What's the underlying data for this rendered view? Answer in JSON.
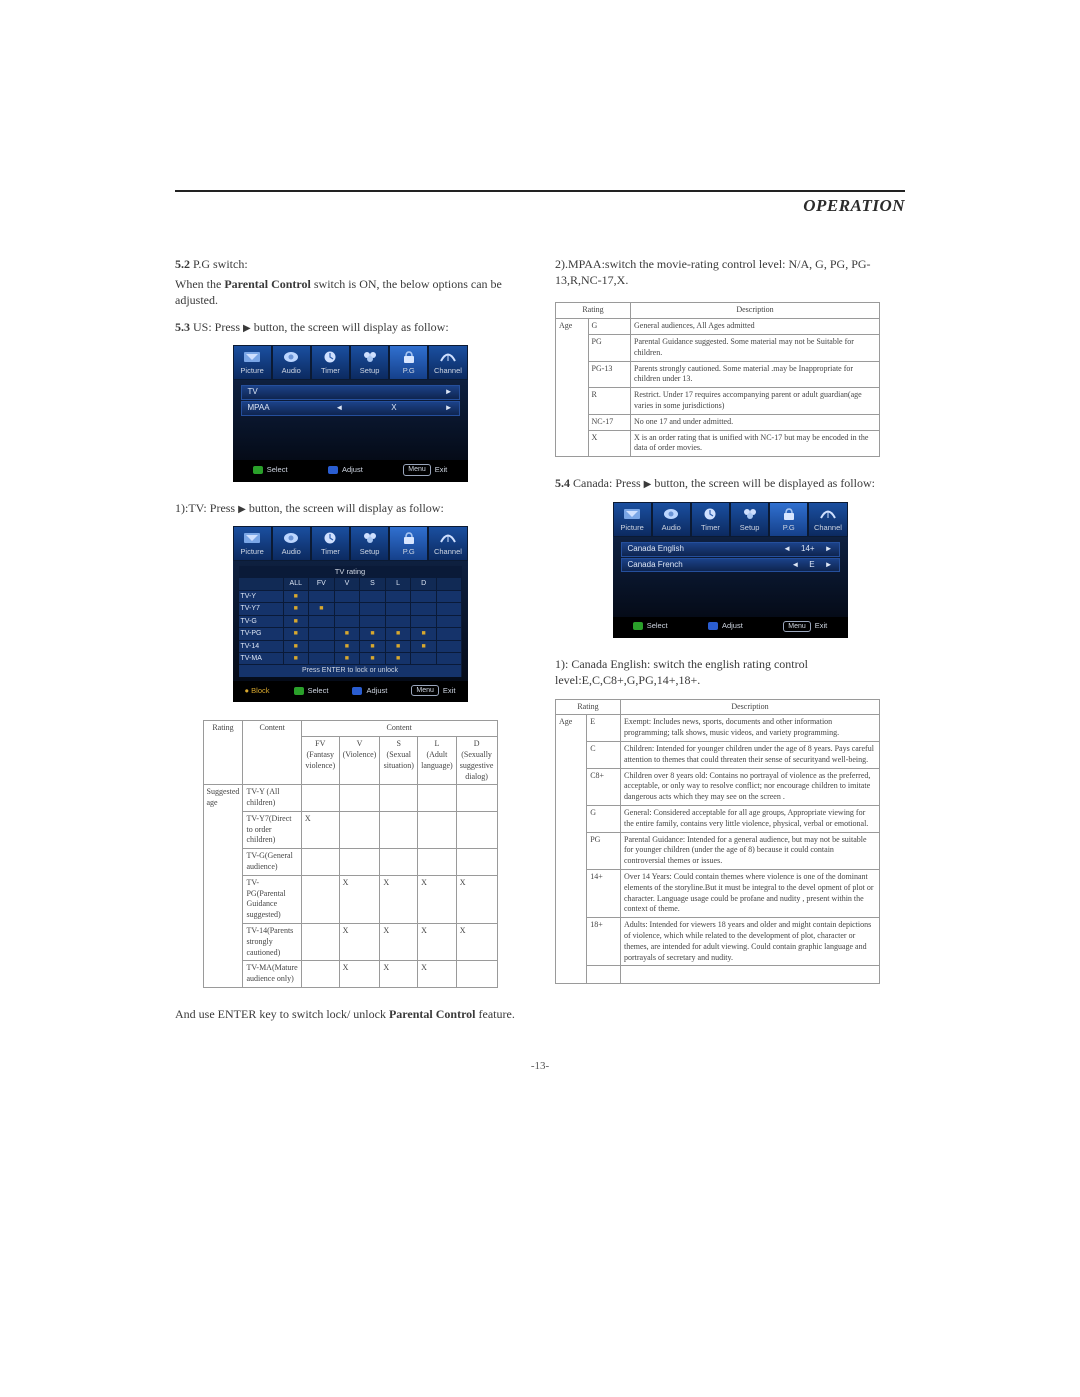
{
  "header": {
    "title": "OPERATION"
  },
  "left": {
    "p52a_1": "5.2",
    "p52a_2": " P.G  switch:",
    "p52b_1": "When  the ",
    "p52b_2": "Parental Control ",
    "p52b_3": "switch is ON, the below options can  be adjusted.",
    "p53_1": "5.3",
    "p53_2": "  US: Press ",
    "p53_3": " button, the screen will  display as  follow:",
    "tv1": "1):TV: Press ",
    "tv2": " button, the screen will  display as follow:",
    "enter1": "And use ENTER key to switch lock/ unlock ",
    "enter2": "Parental Control ",
    "enter3": "feature."
  },
  "right": {
    "mpaa": "2).MPAA:switch the movie-rating control level: N/A, G, PG, PG-13,R,NC-17,X.",
    "p54_1": "5.4",
    "p54_2": " Canada: Press ",
    "p54_3": " button, the screen will be displayed as follow:",
    "caneng": "1): Canada English: switch the english rating control level:E,C,C8+,G,PG,14+,18+."
  },
  "osd": {
    "tabs": [
      "Picture",
      "Audio",
      "Timer",
      "Setup",
      "P.G",
      "Channel"
    ],
    "pgRows": [
      {
        "lab": "TV",
        "v1": "",
        "v2": "",
        "r": "►"
      },
      {
        "lab": "MPAA",
        "v1": "◄",
        "v2": "X",
        "r": "►"
      }
    ],
    "footer": {
      "select": "Select",
      "adjust": "Adjust",
      "menu": "Menu",
      "exit": "Exit"
    },
    "tvRatingTitle": "TV rating",
    "tvHeaders": [
      "",
      "ALL",
      "FV",
      "V",
      "S",
      "L",
      "D",
      ""
    ],
    "tvRows": [
      {
        "lab": "TV-Y",
        "on": [
          1
        ]
      },
      {
        "lab": "TV-Y7",
        "on": [
          1,
          2
        ]
      },
      {
        "lab": "TV-G",
        "on": [
          1
        ]
      },
      {
        "lab": "TV-PG",
        "on": [
          1,
          3,
          4,
          5,
          6
        ]
      },
      {
        "lab": "TV-14",
        "on": [
          1,
          3,
          4,
          5,
          6
        ]
      },
      {
        "lab": "TV-MA",
        "on": [
          1,
          3,
          4,
          5
        ]
      }
    ],
    "tvNote": "Press ENTER to lock or unlock",
    "tvBlock": "● Block",
    "canRows": [
      {
        "lab": "Canada English",
        "l": "◄",
        "v": "14+",
        "r": "►"
      },
      {
        "lab": "Canada French",
        "l": "◄",
        "v": "E",
        "r": "►"
      }
    ]
  },
  "contentTable": {
    "row1c0": "Rating",
    "row1c1": "Content",
    "row1c2": "Content",
    "cH": [
      "FV\n(Fantasy violence)",
      "V\n(Violence)",
      "S\n(Sexual situation)",
      "L\n(Adult language)",
      "D\n(Sexually suggestive dialog)"
    ],
    "ageLabel": "Suggested age",
    "rows": [
      {
        "lab": "TV-Y (All children)",
        "x": []
      },
      {
        "lab": "TV-Y7(Direct to order children)",
        "x": [
          0
        ]
      },
      {
        "lab": "TV-G(General audience)",
        "x": []
      },
      {
        "lab": "TV-PG(Parental Guidance suggested)",
        "x": [
          1,
          2,
          3,
          4
        ]
      },
      {
        "lab": "TV-14(Parents strongly cautioned)",
        "x": [
          1,
          2,
          3,
          4
        ]
      },
      {
        "lab": "TV-MA(Mature audience only)",
        "x": [
          1,
          2,
          3
        ]
      }
    ]
  },
  "mpaaTable": {
    "h1": "Rating",
    "h2": "Description",
    "age": "Age",
    "rows": [
      [
        "G",
        "General audiences, All Ages admitted"
      ],
      [
        "PG",
        "Parental Guidance suggested. Some material may not be Suitable for children."
      ],
      [
        "PG-13",
        "Parents strongly cautioned. Some material .may be Inappropriate for children under 13."
      ],
      [
        "R",
        "Restrict. Under 17 requires accompanying parent or adult guardian(age varies in some jurisdictions)"
      ],
      [
        "NC-17",
        "No  one 17 and under admitted."
      ],
      [
        "X",
        "X  is an order rating that is unified with NC-17 but may be encoded in the data of order movies."
      ]
    ]
  },
  "canTable": {
    "h1": "Rating",
    "h2": "Description",
    "age": "Age",
    "rows": [
      [
        "E",
        "Exempt: Includes news, sports, documents and other information programming; talk shows, music videos, and variety programming."
      ],
      [
        "C",
        "Children: Intended for younger children under the age of 8 years. Pays careful attention to themes that could threaten their sense of securityand well-being."
      ],
      [
        "C8+",
        "Children over 8 years old: Contains no portrayal of violence as the preferred, acceptable, or only way to resolve conflict; nor encourage children to imitate dangerous acts which they may see on the screen ."
      ],
      [
        "G",
        "General: Considered acceptable for all age groups, Appropriate viewing for the entire family, contains very little violence, physical, verbal or emotional."
      ],
      [
        "PG",
        "Parental Guidance: Intended for a general audience, but may not be suitable for younger children (under the age of 8) because it could contain controversial themes or issues."
      ],
      [
        "14+",
        "Over 14 Years: Could contain themes where violence is one of the dominant elements of the storyline.But it must be integral to the devel opment of plot or character. Language usage could be profane and nudity , present within the context of theme."
      ],
      [
        "18+",
        "Adults: Intended for viewers 18 years and older and might contain depictions of  violence, which while related to the development of plot,  character or themes, are intended for adult  viewing. Could contain graphic language and portrayals of secretary and nudity."
      ]
    ]
  },
  "pagenum": "-13-"
}
